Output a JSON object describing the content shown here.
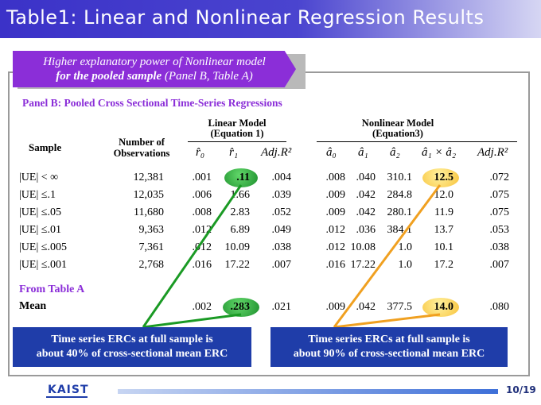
{
  "title": "Table1: Linear and Nonlinear Regression Results",
  "banner": {
    "line1": "Higher explanatory power of Nonlinear model",
    "line2_bold": "for the pooled sample",
    "line2_rest": " (Panel B, Table A)"
  },
  "panel_header": "Panel B: Pooled Cross Sectional Time-Series Regressions",
  "headers": {
    "sample": "Sample",
    "obs_line1": "Number of",
    "obs_line2": "Observations",
    "linear_line1": "Linear Model",
    "linear_line2": "(Equation 1)",
    "nonlinear_line1": "Nonlinear Model",
    "nonlinear_line2": "(Equation3)",
    "r0": "r̂₀",
    "r1": "r̂₁",
    "adjr2": "Adj.R²",
    "a0": "â₀",
    "a1": "â₁",
    "a2": "â₂",
    "a1xa2": "â₁ × â₂",
    "adjr2_nl": "Adj.R²"
  },
  "rows": [
    {
      "sample": "|UE| < ∞",
      "obs": "12,381",
      "r0": ".001",
      "r1": ".11",
      "adj1": ".004",
      "a0": ".008",
      "a1": ".040",
      "a2": "310.1",
      "a1a2": "12.5",
      "adj2": ".072"
    },
    {
      "sample": "|UE| ≤.1",
      "obs": "12,035",
      "r0": ".006",
      "r1": "1.66",
      "adj1": ".039",
      "a0": ".009",
      "a1": ".042",
      "a2": "284.8",
      "a1a2": "12.0",
      "adj2": ".075"
    },
    {
      "sample": "|UE| ≤.05",
      "obs": "11,680",
      "r0": ".008",
      "r1": "2.83",
      "adj1": ".052",
      "a0": ".009",
      "a1": ".042",
      "a2": "280.1",
      "a1a2": "11.9",
      "adj2": ".075"
    },
    {
      "sample": "|UE| ≤.01",
      "obs": "9,363",
      "r0": ".012",
      "r1": "6.89",
      "adj1": ".049",
      "a0": ".012",
      "a1": ".036",
      "a2": "384.1",
      "a1a2": "13.7",
      "adj2": ".053"
    },
    {
      "sample": "|UE| ≤.005",
      "obs": "7,361",
      "r0": ".012",
      "r1": "10.09",
      "adj1": ".038",
      "a0": ".012",
      "a1": "10.08",
      "a2": "1.0",
      "a1a2": "10.1",
      "adj2": ".038"
    },
    {
      "sample": "|UE| ≤.001",
      "obs": "2,768",
      "r0": ".016",
      "r1": "17.22",
      "adj1": ".007",
      "a0": ".016",
      "a1": "17.22",
      "a2": "1.0",
      "a1a2": "17.2",
      "adj2": ".007"
    }
  ],
  "from_table": "From Table A",
  "mean": {
    "label": "Mean",
    "r0": ".002",
    "r1": ".283",
    "adj1": ".021",
    "a0": ".009",
    "a1": ".042",
    "a2": "377.5",
    "a1a2": "14.0",
    "adj2": ".080"
  },
  "callouts": {
    "left_line1": "Time series ERCs at full sample is",
    "left_line2": "about 40% of cross-sectional mean ERC",
    "right_line1": "Time series ERCs at full sample is",
    "right_line2": "about 90% of cross-sectional mean ERC"
  },
  "footer": {
    "logo": "KAIST",
    "page": "10/19"
  },
  "colors": {
    "title_bg": "#3b32c8",
    "banner": "#8b2ed8",
    "callout": "#1f3da9",
    "green": "#1c8e2c",
    "yellow": "#f8c23a",
    "green_line": "#1a9a24",
    "orange_line": "#f0a020"
  }
}
